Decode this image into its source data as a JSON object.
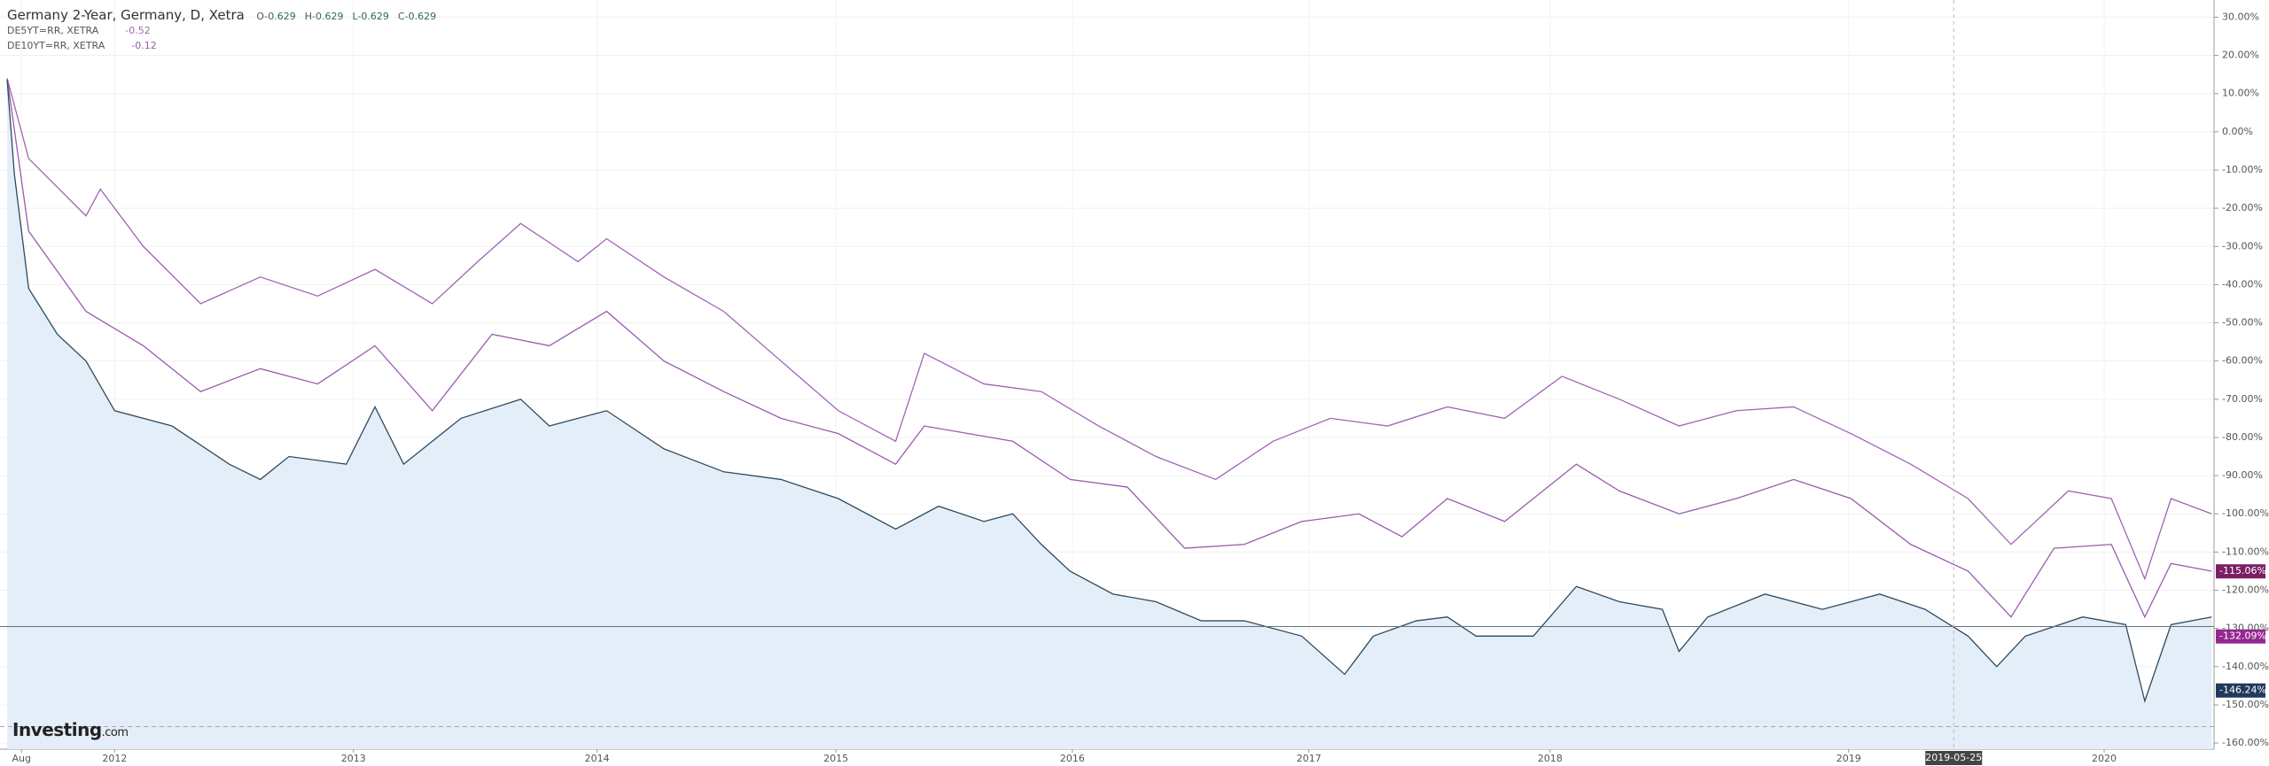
{
  "chart_data": {
    "type": "line",
    "header": {
      "title": "Germany 2-Year, Germany, D, Xetra",
      "ohlc": [
        {
          "key": "O",
          "value": -0.629
        },
        {
          "key": "H",
          "value": -0.629
        },
        {
          "key": "L",
          "value": -0.629
        },
        {
          "key": "C",
          "value": -0.629
        }
      ]
    },
    "logo": {
      "brand": "Investing",
      "suffix": ".com"
    },
    "xlim": [
      2011.52,
      2020.79
    ],
    "ylim": [
      -161.6,
      34.5
    ],
    "xticks": [
      {
        "value": 2011.61,
        "label": "Aug"
      },
      {
        "value": 2012.0,
        "label": "2012"
      },
      {
        "value": 2013.0,
        "label": "2013"
      },
      {
        "value": 2014.02,
        "label": "2014"
      },
      {
        "value": 2015.02,
        "label": "2015"
      },
      {
        "value": 2016.01,
        "label": "2016"
      },
      {
        "value": 2017.0,
        "label": "2017"
      },
      {
        "value": 2018.01,
        "label": "2018"
      },
      {
        "value": 2019.26,
        "label": "2019"
      },
      {
        "value": 2020.33,
        "label": "2020"
      }
    ],
    "yticks": [
      {
        "value": 30,
        "label": "30.00%"
      },
      {
        "value": 20,
        "label": "20.00%"
      },
      {
        "value": 10,
        "label": "10.00%"
      },
      {
        "value": 0,
        "label": "0.00%"
      },
      {
        "value": -10,
        "label": "-10.00%"
      },
      {
        "value": -20,
        "label": "-20.00%"
      },
      {
        "value": -30,
        "label": "-30.00%"
      },
      {
        "value": -40,
        "label": "-40.00%"
      },
      {
        "value": -50,
        "label": "-50.00%"
      },
      {
        "value": -60,
        "label": "-60.00%"
      },
      {
        "value": -70,
        "label": "-70.00%"
      },
      {
        "value": -80,
        "label": "-80.00%"
      },
      {
        "value": -90,
        "label": "-90.00%"
      },
      {
        "value": -100,
        "label": "-100.00%"
      },
      {
        "value": -110,
        "label": "-110.00%"
      },
      {
        "value": -120,
        "label": "-120.00%"
      },
      {
        "value": -130,
        "label": "-130.00%"
      },
      {
        "value": -140,
        "label": "-140.00%"
      },
      {
        "value": -150,
        "label": "-150.00%"
      },
      {
        "value": -160,
        "label": "-160.00%"
      }
    ],
    "grid": true,
    "crosshair": {
      "x": 2019.7,
      "label": "2019-05-25"
    },
    "reference_lines": [
      {
        "value": -129.5,
        "color": "#5d7480",
        "dash": false
      },
      {
        "value": -155.7,
        "color": "#aaaaaa",
        "dash": true
      }
    ],
    "price_labels": [
      {
        "value": -115.06,
        "label": "-115.06%",
        "color": "#7b1f63"
      },
      {
        "value": -132.09,
        "label": "-132.09%",
        "color": "#93288f"
      },
      {
        "value": -146.24,
        "label": "-146.24%",
        "color": "#1f3a5c"
      }
    ],
    "series": [
      {
        "name": "DE5YT=RR, XETRA",
        "legend_value": -0.52,
        "color": "#a064b4",
        "x": [
          2011.55,
          2011.64,
          2011.88,
          2011.94,
          2012.12,
          2012.36,
          2012.61,
          2012.85,
          2013.09,
          2013.33,
          2013.52,
          2013.7,
          2013.94,
          2014.06,
          2014.3,
          2014.55,
          2014.79,
          2015.03,
          2015.27,
          2015.39,
          2015.64,
          2015.88,
          2016.12,
          2016.36,
          2016.61,
          2016.85,
          2017.09,
          2017.33,
          2017.58,
          2017.82,
          2018.06,
          2018.3,
          2018.55,
          2018.79,
          2019.03,
          2019.27,
          2019.52,
          2019.76,
          2019.94,
          2020.18,
          2020.36,
          2020.5,
          2020.61,
          2020.78
        ],
        "values": [
          14,
          -7,
          -22,
          -15,
          -30,
          -45,
          -38,
          -43,
          -36,
          -45,
          -34,
          -24,
          -34,
          -28,
          -38,
          -47,
          -60,
          -73,
          -81,
          -58,
          -66,
          -68,
          -77,
          -85,
          -91,
          -81,
          -75,
          -77,
          -72,
          -75,
          -64,
          -70,
          -77,
          -73,
          -72,
          -79,
          -87,
          -96,
          -108,
          -94,
          -96,
          -117,
          -96,
          -100
        ]
      },
      {
        "name": "DE10YT=RR, XETRA",
        "legend_value": -0.12,
        "color": "#9a5aae",
        "x": [
          2011.55,
          2011.64,
          2011.88,
          2012.12,
          2012.36,
          2012.61,
          2012.85,
          2013.09,
          2013.33,
          2013.58,
          2013.82,
          2014.06,
          2014.3,
          2014.55,
          2014.79,
          2015.03,
          2015.27,
          2015.39,
          2015.76,
          2016.0,
          2016.24,
          2016.48,
          2016.73,
          2016.97,
          2017.21,
          2017.39,
          2017.58,
          2017.82,
          2018.12,
          2018.3,
          2018.55,
          2018.79,
          2019.03,
          2019.27,
          2019.52,
          2019.76,
          2019.94,
          2020.12,
          2020.36,
          2020.5,
          2020.61,
          2020.78
        ],
        "values": [
          14,
          -26,
          -47,
          -56,
          -68,
          -62,
          -66,
          -56,
          -73,
          -53,
          -56,
          -47,
          -60,
          -68,
          -75,
          -79,
          -87,
          -77,
          -81,
          -91,
          -93,
          -109,
          -108,
          -102,
          -100,
          -106,
          -96,
          -102,
          -87,
          -94,
          -100,
          -96,
          -91,
          -96,
          -108,
          -115,
          -127,
          -109,
          -108,
          -127,
          -113,
          -115
        ]
      },
      {
        "name": "Germany 2-Year",
        "color": "#2e4b5d",
        "fill": "#e4eef9",
        "x": [
          2011.55,
          2011.58,
          2011.64,
          2011.76,
          2011.88,
          2012.0,
          2012.24,
          2012.48,
          2012.61,
          2012.73,
          2012.97,
          2013.09,
          2013.21,
          2013.45,
          2013.7,
          2013.82,
          2014.06,
          2014.3,
          2014.55,
          2014.79,
          2015.03,
          2015.27,
          2015.45,
          2015.64,
          2015.76,
          2015.88,
          2016.0,
          2016.18,
          2016.36,
          2016.55,
          2016.73,
          2016.97,
          2017.15,
          2017.27,
          2017.45,
          2017.58,
          2017.7,
          2017.94,
          2018.12,
          2018.3,
          2018.48,
          2018.55,
          2018.67,
          2018.91,
          2019.15,
          2019.39,
          2019.58,
          2019.76,
          2019.88,
          2020.0,
          2020.24,
          2020.42,
          2020.5,
          2020.61,
          2020.78
        ],
        "values": [
          13.6,
          -11,
          -41,
          -53,
          -60,
          -73,
          -77,
          -87,
          -91,
          -85,
          -87,
          -72,
          -87,
          -75,
          -70,
          -77,
          -73,
          -83,
          -89,
          -91,
          -96,
          -104,
          -98,
          -102,
          -100,
          -108,
          -115,
          -121,
          -123,
          -128,
          -128,
          -132,
          -142,
          -132,
          -128,
          -127,
          -132,
          -132,
          -119,
          -123,
          -125,
          -136,
          -127,
          -121,
          -125,
          -121,
          -125,
          -132,
          -140,
          -132,
          -127,
          -129,
          -149,
          -129,
          -127
        ]
      }
    ]
  }
}
